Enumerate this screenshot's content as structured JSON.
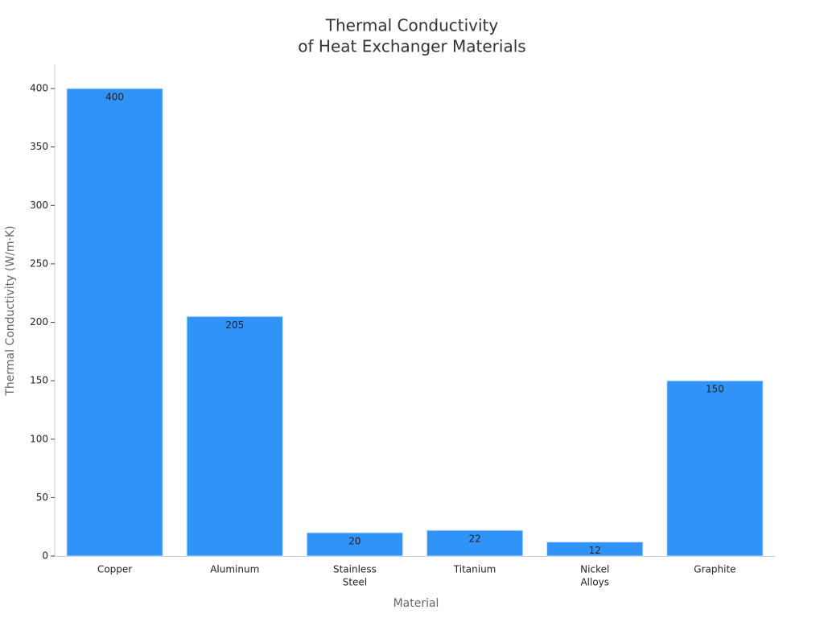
{
  "chart_data": {
    "type": "bar",
    "title": [
      "Thermal Conductivity",
      "of Heat Exchanger Materials"
    ],
    "x_label": "Material",
    "y_label": "Thermal Conductivity (W/m·K)",
    "categories": [
      [
        "Copper"
      ],
      [
        "Aluminum"
      ],
      [
        "Stainless",
        "Steel"
      ],
      [
        "Titanium"
      ],
      [
        "Nickel",
        "Alloys"
      ],
      [
        "Graphite"
      ]
    ],
    "values": [
      400,
      205,
      20,
      22,
      12,
      150
    ],
    "color": "#2f93f7",
    "ylim": [
      0,
      420
    ],
    "yticks": [
      0,
      50,
      100,
      150,
      200,
      250,
      300,
      350,
      400
    ],
    "grid": false
  }
}
